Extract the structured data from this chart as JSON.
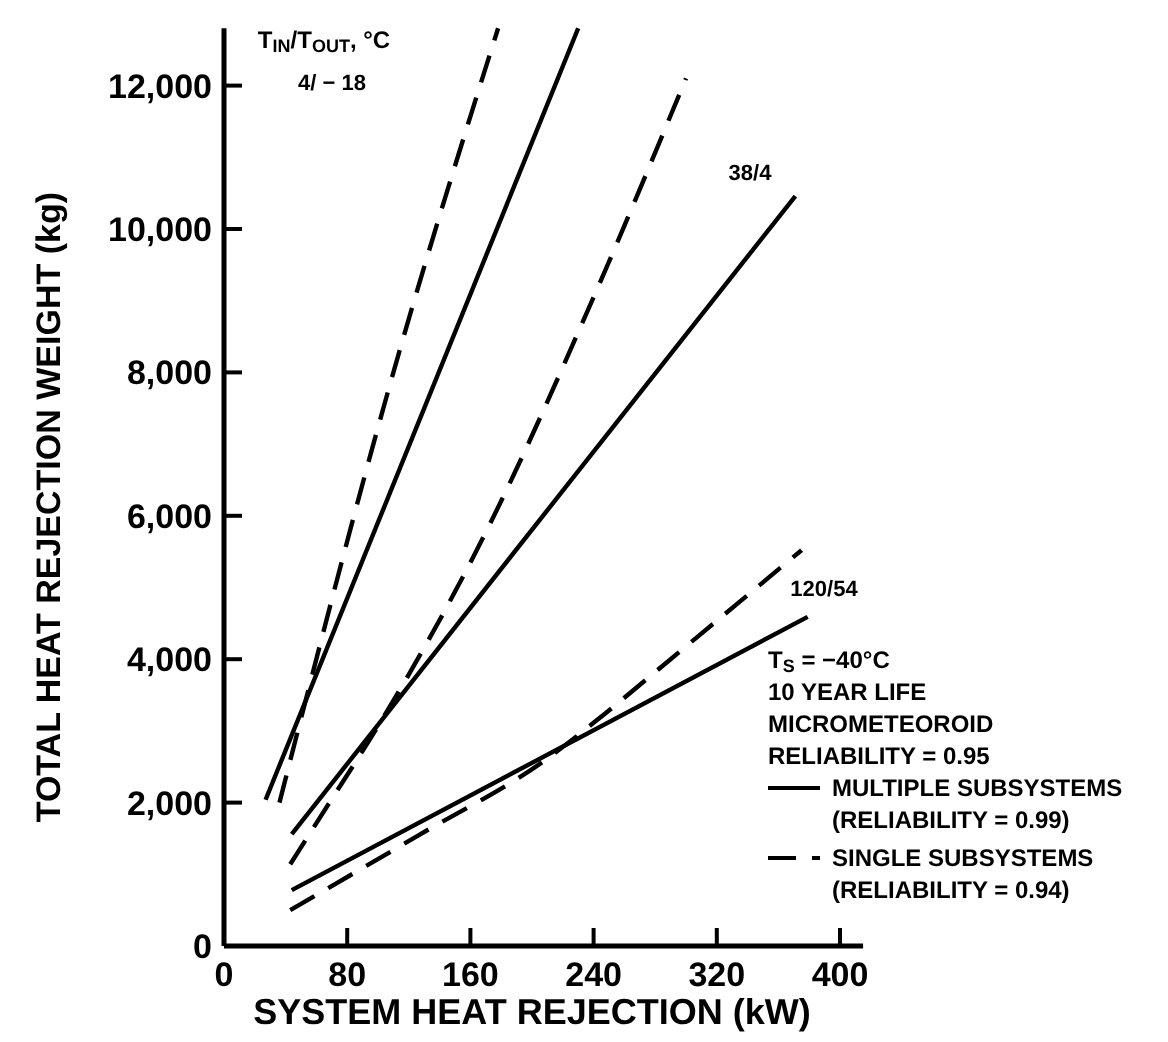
{
  "chart_data": {
    "type": "line",
    "xlabel": "SYSTEM HEAT REJECTION (kW)",
    "ylabel": "TOTAL HEAT REJECTION WEIGHT (kg)",
    "xlim": [
      0,
      415
    ],
    "ylim": [
      0,
      12800
    ],
    "xticks": [
      0,
      80,
      160,
      240,
      320,
      400
    ],
    "yticks": [
      0,
      {
        "value": 2000,
        "label": "2,000"
      },
      {
        "value": 4000,
        "label": "4,000"
      },
      {
        "value": 6000,
        "label": "6,000"
      },
      {
        "value": 8000,
        "label": "8,000"
      },
      {
        "value": 10000,
        "label": "10,000"
      },
      {
        "value": 12000,
        "label": "12,000"
      }
    ],
    "grid": false,
    "legend": "right",
    "marker": "none",
    "series": [
      {
        "name": "MULTIPLE SUBSYSTEMS\n(RELIABILITY = 0.99)",
        "color": "#000000",
        "line_style": "solid",
        "x": [
          27,
          230
        ],
        "values": [
          2040,
          12800
        ]
      },
      {
        "name": "SINGLE SUBSYSTEMS\n(RELIABILITY = 0.94)",
        "color": "#000000",
        "line_style": "dashed",
        "x": [
          36,
          110,
          178
        ],
        "values": [
          2000,
          8000,
          12800
        ]
      },
      {
        "color": "#000000",
        "line_style": "solid",
        "x": [
          44,
          371
        ],
        "values": [
          1560,
          10460
        ]
      },
      {
        "color": "#000000",
        "line_style": "dashed",
        "x": [
          43,
          70,
          101,
          170,
          240,
          300
        ],
        "values": [
          1140,
          2050,
          3100,
          5770,
          9050,
          12100
        ]
      },
      {
        "color": "#000000",
        "line_style": "solid",
        "x": [
          44,
          379
        ],
        "values": [
          780,
          4590
        ]
      },
      {
        "color": "#000000",
        "line_style": "dashed",
        "x": [
          43,
          126,
          209,
          241,
          290,
          375
        ],
        "values": [
          500,
          1540,
          2600,
          3130,
          4000,
          5520
        ]
      }
    ],
    "annotations": [
      "T$_{IN}$/T$_{OUT}$, °C",
      "4/ − 18",
      "38/4",
      "120/54",
      "T$_{S}$ = −40°C",
      "10 YEAR LIFE",
      "MICROMETEOROID",
      "RELIABILITY = 0.95"
    ]
  }
}
